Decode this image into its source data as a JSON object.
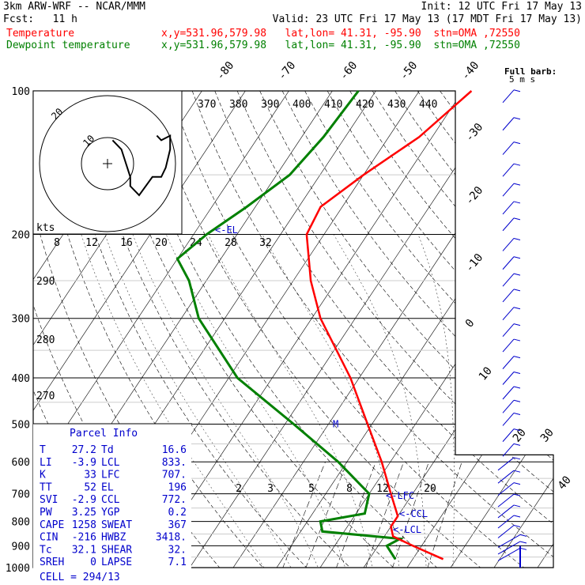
{
  "header": {
    "model": "3km ARW-WRF -- NCAR/MMM",
    "init": "Init: 12 UTC Fri 17 May 13",
    "fcst": "Fcst:   11 h",
    "valid": "Valid: 23 UTC Fri 17 May 13 (17 MDT Fri 17 May 13)",
    "temp_label": "Temperature",
    "dew_label": "Dewpoint temperature",
    "temp_info": "x,y=531.96,579.98   lat,lon= 41.31, -95.90  stn=OMA ,72550",
    "dew_info": "x,y=531.96,579.98   lat,lon= 41.31, -95.90  stn=OMA ,72550"
  },
  "colors": {
    "temperature": "#ff0000",
    "dewpoint": "#008000",
    "wind": "#0000cc",
    "parcel": "#0000cc"
  },
  "chart_data": {
    "type": "skew-t",
    "y_axis": "pressure (hPa), log scale",
    "pressure_ticks": [
      100,
      200,
      300,
      400,
      500,
      600,
      700,
      800,
      900,
      1000
    ],
    "isotherm_labels": [
      "-80",
      "-70",
      "-60",
      "-50",
      "-40",
      "-30",
      "-20",
      "-10",
      "0",
      "10",
      "20",
      "30",
      "40"
    ],
    "theta_labels": [
      "370",
      "380",
      "390",
      "400",
      "410",
      "420",
      "430",
      "440"
    ],
    "theta_left_labels": [
      "290",
      "280",
      "270"
    ],
    "mixing_ratio_labels": [
      "2",
      "3",
      "5",
      "8",
      "12",
      "20"
    ],
    "hodograph": {
      "unit_label": "kts",
      "ring_labels": [
        "10",
        "20"
      ],
      "speed_ticks": [
        "8",
        "12",
        "16",
        "20",
        "24",
        "28",
        "32"
      ],
      "points": [
        [
          8,
          6
        ],
        [
          12,
          10
        ],
        [
          14,
          16
        ],
        [
          16,
          22
        ],
        [
          16,
          26
        ],
        [
          20,
          30
        ],
        [
          26,
          22
        ],
        [
          30,
          22
        ],
        [
          32,
          18
        ],
        [
          34,
          10
        ],
        [
          34,
          4
        ],
        [
          30,
          6
        ],
        [
          28,
          4
        ]
      ]
    },
    "temperature": [
      {
        "p": 100,
        "t": -38
      },
      {
        "p": 125,
        "t": -43
      },
      {
        "p": 150,
        "t": -50
      },
      {
        "p": 175,
        "t": -55
      },
      {
        "p": 200,
        "t": -54
      },
      {
        "p": 250,
        "t": -46
      },
      {
        "p": 300,
        "t": -38
      },
      {
        "p": 400,
        "t": -22
      },
      {
        "p": 500,
        "t": -11
      },
      {
        "p": 600,
        "t": -2
      },
      {
        "p": 700,
        "t": 5
      },
      {
        "p": 780,
        "t": 10
      },
      {
        "p": 820,
        "t": 10
      },
      {
        "p": 860,
        "t": 12
      },
      {
        "p": 900,
        "t": 18
      },
      {
        "p": 960,
        "t": 27
      }
    ],
    "dewpoint": [
      {
        "p": 100,
        "t": -64
      },
      {
        "p": 125,
        "t": -65
      },
      {
        "p": 150,
        "t": -67
      },
      {
        "p": 175,
        "t": -72
      },
      {
        "p": 200,
        "t": -77
      },
      {
        "p": 225,
        "t": -80
      },
      {
        "p": 250,
        "t": -74
      },
      {
        "p": 300,
        "t": -66
      },
      {
        "p": 400,
        "t": -48
      },
      {
        "p": 500,
        "t": -28
      },
      {
        "p": 600,
        "t": -12
      },
      {
        "p": 700,
        "t": 0
      },
      {
        "p": 770,
        "t": 2
      },
      {
        "p": 800,
        "t": -7
      },
      {
        "p": 840,
        "t": -5
      },
      {
        "p": 870,
        "t": 14
      },
      {
        "p": 900,
        "t": 12
      },
      {
        "p": 960,
        "t": 16
      }
    ],
    "level_labels": [
      {
        "label": "<-EL",
        "p": 196
      },
      {
        "label": "<-LFC",
        "p": 707
      },
      {
        "label": "<-CCL",
        "p": 772
      },
      {
        "label": "<-LCL",
        "p": 833
      },
      {
        "label": "M",
        "p": 500
      }
    ],
    "wind_barb_label": "Full barb:",
    "wind_barb_unit": "5 m s",
    "wind_barb_pressures": [
      105,
      120,
      135,
      150,
      165,
      180,
      195,
      215,
      235,
      255,
      275,
      300,
      325,
      350,
      380,
      410,
      440,
      470,
      500,
      540,
      580,
      620,
      660,
      700,
      740,
      780,
      820,
      860,
      900,
      930,
      960
    ]
  },
  "parcel": {
    "title": "Parcel Info",
    "rows": [
      [
        "T",
        "27.2",
        "Td",
        "16.6"
      ],
      [
        "LI",
        "-3.9",
        "LCL",
        "833."
      ],
      [
        "K",
        "33",
        "LFC",
        "707."
      ],
      [
        "TT",
        "52",
        "EL",
        "196"
      ],
      [
        "SVI",
        "-2.9",
        "CCL",
        "772."
      ],
      [
        "PW",
        "3.25",
        "YGP",
        "0.2"
      ],
      [
        "CAPE",
        "1258",
        "SWEAT",
        "367"
      ],
      [
        "CIN",
        "-216",
        "HWBZ",
        "3418."
      ],
      [
        "Tc",
        "32.1",
        "SHEAR",
        "32."
      ],
      [
        "SREH",
        "0",
        "LAPSE",
        "7.1"
      ]
    ],
    "cell": "CELL = 294/13"
  }
}
